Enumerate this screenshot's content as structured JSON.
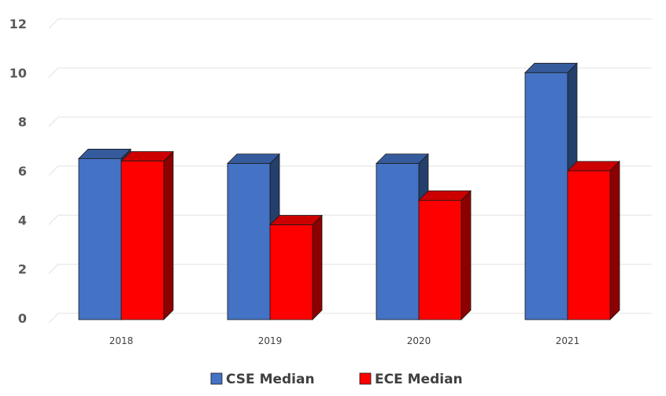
{
  "chart_data": {
    "type": "bar",
    "title": "",
    "xlabel": "",
    "ylabel": "",
    "categories": [
      "2018",
      "2019",
      "2020",
      "2021"
    ],
    "series": [
      {
        "name": "CSE Median",
        "values": [
          6.5,
          6.3,
          6.3,
          10
        ],
        "color": "#4472C4"
      },
      {
        "name": "ECE Median",
        "values": [
          6.4,
          3.8,
          4.8,
          6.0
        ],
        "color": "#FF0000"
      }
    ],
    "ylim": [
      0,
      12
    ],
    "yticks": [
      0,
      2,
      4,
      6,
      8,
      10,
      12
    ],
    "grid": true,
    "legend_position": "bottom",
    "style": "3d-clustered-column"
  }
}
